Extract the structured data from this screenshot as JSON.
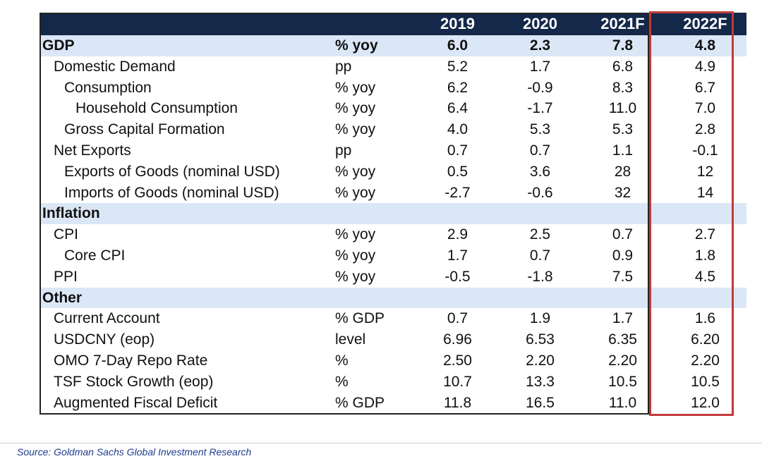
{
  "colors": {
    "header_bg": "#14284a",
    "section_bg": "#dbe7f6",
    "highlight_border": "#c03a3a",
    "source_text": "#1f3c8c"
  },
  "table": {
    "headers": [
      "",
      "",
      "2019",
      "2020",
      "2021F",
      "2022F"
    ],
    "rows": [
      {
        "label": "GDP",
        "unit": "% yoy",
        "v": [
          "6.0",
          "2.3",
          "7.8",
          "4.8"
        ],
        "type": "section"
      },
      {
        "label": "Domestic Demand",
        "unit": "pp",
        "v": [
          "5.2",
          "1.7",
          "6.8",
          "4.9"
        ],
        "level": 1
      },
      {
        "label": "Consumption",
        "unit": "% yoy",
        "v": [
          "6.2",
          "-0.9",
          "8.3",
          "6.7"
        ],
        "level": 2
      },
      {
        "label": "Household Consumption",
        "unit": "% yoy",
        "v": [
          "6.4",
          "-1.7",
          "11.0",
          "7.0"
        ],
        "level": 3
      },
      {
        "label": "Gross Capital Formation",
        "unit": "% yoy",
        "v": [
          "4.0",
          "5.3",
          "5.3",
          "2.8"
        ],
        "level": 2
      },
      {
        "label": "Net Exports",
        "unit": "pp",
        "v": [
          "0.7",
          "0.7",
          "1.1",
          "-0.1"
        ],
        "level": 1
      },
      {
        "label": "Exports of Goods (nominal USD)",
        "unit": "% yoy",
        "v": [
          "0.5",
          "3.6",
          "28",
          "12"
        ],
        "level": 2
      },
      {
        "label": "Imports of Goods (nominal USD)",
        "unit": "% yoy",
        "v": [
          "-2.7",
          "-0.6",
          "32",
          "14"
        ],
        "level": 2
      },
      {
        "label": "Inflation",
        "unit": "",
        "v": [
          "",
          "",
          "",
          ""
        ],
        "type": "section"
      },
      {
        "label": "CPI",
        "unit": "% yoy",
        "v": [
          "2.9",
          "2.5",
          "0.7",
          "2.7"
        ],
        "level": 1
      },
      {
        "label": "Core CPI",
        "unit": "% yoy",
        "v": [
          "1.7",
          "0.7",
          "0.9",
          "1.8"
        ],
        "level": 2
      },
      {
        "label": "PPI",
        "unit": "% yoy",
        "v": [
          "-0.5",
          "-1.8",
          "7.5",
          "4.5"
        ],
        "level": 1
      },
      {
        "label": "Other",
        "unit": "",
        "v": [
          "",
          "",
          "",
          ""
        ],
        "type": "section"
      },
      {
        "label": "Current Account",
        "unit": "% GDP",
        "v": [
          "0.7",
          "1.9",
          "1.7",
          "1.6"
        ],
        "level": 1
      },
      {
        "label": "USDCNY (eop)",
        "unit": "level",
        "v": [
          "6.96",
          "6.53",
          "6.35",
          "6.20"
        ],
        "level": 1
      },
      {
        "label": "OMO 7-Day Repo Rate",
        "unit": "%",
        "v": [
          "2.50",
          "2.20",
          "2.20",
          "2.20"
        ],
        "level": 1
      },
      {
        "label": "TSF Stock Growth (eop)",
        "unit": "%",
        "v": [
          "10.7",
          "13.3",
          "10.5",
          "10.5"
        ],
        "level": 1
      },
      {
        "label": "Augmented Fiscal Deficit",
        "unit": "% GDP",
        "v": [
          "11.8",
          "16.5",
          "11.0",
          "12.0"
        ],
        "level": 1
      }
    ]
  },
  "source": "Source: Goldman Sachs Global Investment Research"
}
